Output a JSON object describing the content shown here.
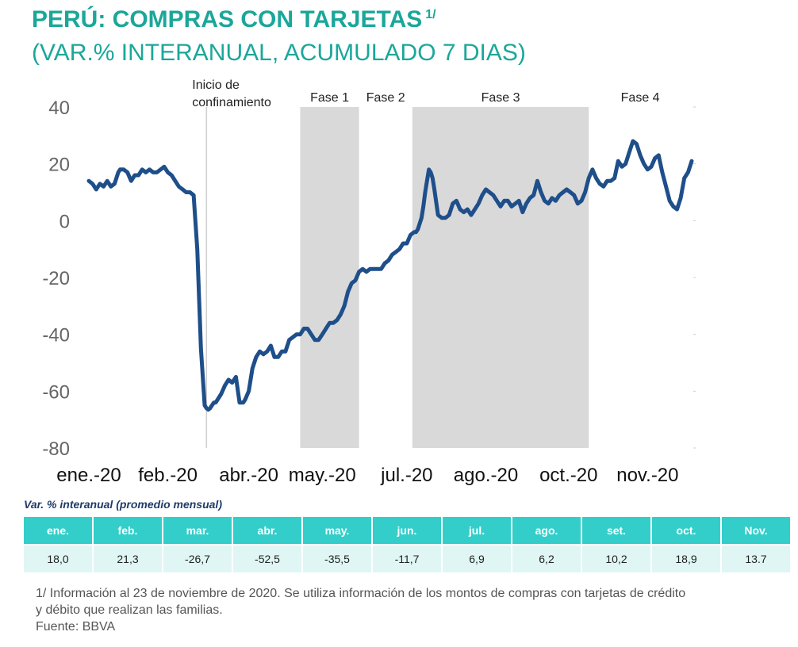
{
  "header": {
    "title": "PERÚ: COMPRAS CON TARJETAS",
    "title_sup": "1/",
    "subtitle": "(VAR.% INTERANUAL, ACUMULADO 7 DIAS)"
  },
  "colors": {
    "accent": "#1aa79a",
    "line": "#1f4f8a",
    "phase_band": "#d9d9d9",
    "table_header": "#33cec9",
    "table_cell": "#dff6f5"
  },
  "chart_data": {
    "type": "line",
    "title": "PERÚ: COMPRAS CON TARJETAS 1/ (VAR.% INTERANUAL, ACUMULADO 7 DIAS)",
    "xlabel": "",
    "ylabel": "",
    "ylim": [
      -80,
      40
    ],
    "yticks": [
      40,
      20,
      0,
      -20,
      -40,
      -60,
      -80
    ],
    "xlim": [
      0,
      328
    ],
    "x_unit": "days since 1-ene-2020",
    "xtick_labels": [
      "ene.-20",
      "feb.-20",
      "abr.-20",
      "may.-20",
      "jul.-20",
      "ago.-20",
      "oct.-20",
      "nov.-20"
    ],
    "xtick_positions": [
      0,
      43,
      87,
      127,
      173,
      216,
      261,
      304
    ],
    "annotations": [
      {
        "x": 64,
        "label_line1": "Inicio de",
        "label_line2": "confinamiento"
      }
    ],
    "phases": [
      {
        "label": "Fase 1",
        "x_start": 115,
        "x_end": 147,
        "shaded": true
      },
      {
        "label": "Fase 2",
        "x_start": 147,
        "x_end": 176,
        "shaded": false
      },
      {
        "label": "Fase 3",
        "x_start": 176,
        "x_end": 272,
        "shaded": true
      },
      {
        "label": "Fase 4",
        "x_start": 272,
        "x_end": 328,
        "shaded": false
      }
    ],
    "series": [
      {
        "name": "Compras con tarjetas (var.% interanual, acumulado 7 días)",
        "x": [
          0,
          2,
          4,
          6,
          8,
          10,
          12,
          14,
          16,
          17,
          19,
          21,
          23,
          25,
          27,
          29,
          31,
          33,
          35,
          37,
          39,
          41,
          43,
          45,
          47,
          49,
          51,
          53,
          55,
          57,
          59,
          61,
          63,
          64,
          65,
          66,
          67,
          68,
          69,
          70,
          72,
          74,
          76,
          78,
          80,
          82,
          84,
          85,
          87,
          89,
          91,
          93,
          95,
          97,
          99,
          101,
          103,
          105,
          107,
          109,
          111,
          113,
          115,
          117,
          119,
          121,
          123,
          125,
          127,
          129,
          131,
          133,
          135,
          137,
          139,
          141,
          143,
          145,
          147,
          149,
          151,
          153,
          155,
          157,
          159,
          161,
          163,
          165,
          167,
          169,
          171,
          173,
          175,
          177,
          178,
          179,
          180,
          181,
          182,
          183,
          184,
          185,
          186,
          187,
          188,
          190,
          192,
          194,
          196,
          198,
          200,
          202,
          204,
          206,
          208,
          210,
          212,
          214,
          216,
          218,
          220,
          222,
          224,
          226,
          228,
          230,
          232,
          234,
          236,
          238,
          240,
          242,
          244,
          246,
          248,
          250,
          252,
          254,
          256,
          258,
          260,
          262,
          264,
          266,
          268,
          270,
          272,
          274,
          276,
          278,
          280,
          282,
          284,
          286,
          288,
          290,
          292,
          294,
          296,
          298,
          300,
          302,
          304,
          306,
          308,
          310,
          312,
          314,
          316,
          318,
          320,
          322,
          324,
          326,
          328
        ],
        "y": [
          14,
          13,
          11,
          13,
          12,
          14,
          12,
          13,
          17,
          18,
          18,
          17,
          14,
          16,
          16,
          18,
          17,
          18,
          17,
          17,
          18,
          19,
          17,
          16,
          14,
          12,
          11,
          10,
          10,
          9,
          -10,
          -45,
          -65,
          -66,
          -66.5,
          -66,
          -65,
          -64,
          -64,
          -63,
          -61,
          -58,
          -56,
          -57,
          -55,
          -64,
          -64,
          -63,
          -60,
          -52,
          -48,
          -46,
          -47,
          -46,
          -44,
          -48,
          -48,
          -46,
          -46,
          -42,
          -41,
          -40,
          -40,
          -38,
          -38,
          -40,
          -42,
          -42,
          -40,
          -38,
          -36,
          -36,
          -35,
          -33,
          -30,
          -25,
          -22,
          -21,
          -18,
          -17,
          -18,
          -17,
          -17,
          -17,
          -17,
          -15,
          -14,
          -12,
          -11,
          -10,
          -8,
          -8,
          -5,
          -4,
          -4,
          -3,
          -1,
          1,
          5,
          10,
          14,
          18,
          17,
          15,
          11,
          2,
          1,
          1,
          2,
          6,
          7,
          4,
          3,
          4,
          2,
          4,
          6,
          9,
          11,
          10,
          9,
          7,
          5,
          7,
          7,
          5,
          6,
          7,
          3,
          6,
          8,
          9,
          14,
          10,
          7,
          6,
          8,
          7,
          9,
          10,
          11,
          10,
          9,
          6,
          7,
          10,
          15,
          18,
          15,
          13,
          12,
          14,
          14,
          15,
          21,
          19,
          20,
          24,
          28,
          27,
          23,
          20,
          18,
          19,
          22,
          23,
          17,
          12,
          7,
          5,
          4,
          8,
          15,
          17,
          21
        ]
      }
    ]
  },
  "table": {
    "caption": "Var. % interanual (promedio mensual)",
    "headers": [
      "ene.",
      "feb.",
      "mar.",
      "abr.",
      "may.",
      "jun.",
      "jul.",
      "ago.",
      "set.",
      "oct.",
      "Nov."
    ],
    "values": [
      "18,0",
      "21,3",
      "-26,7",
      "-52,5",
      "-35,5",
      "-11,7",
      "6,9",
      "6,2",
      "10,2",
      "18,9",
      "13.7"
    ]
  },
  "footnote": {
    "line1": "1/ Información al 23 de noviembre de 2020. Se utiliza información de los montos de compras con tarjetas de crédito",
    "line2": "y débito que realizan las familias.",
    "source": "Fuente: BBVA"
  }
}
